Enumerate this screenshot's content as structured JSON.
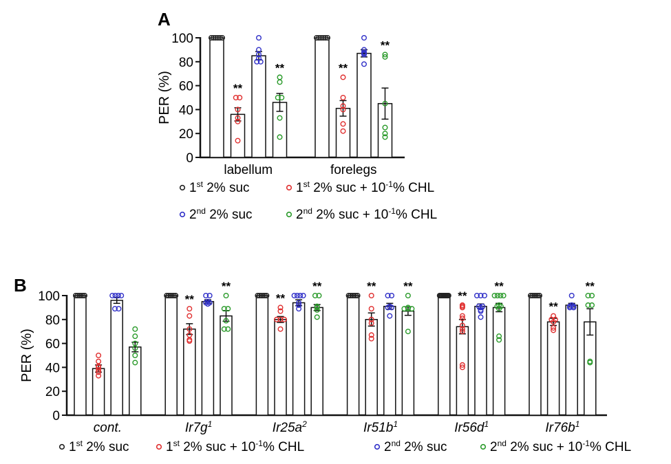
{
  "chart_data": [
    {
      "type": "bar",
      "panel": "A",
      "ylabel": "PER (%)",
      "ylim": [
        0,
        100
      ],
      "yticks": [
        0,
        20,
        40,
        60,
        80,
        100
      ],
      "categories": [
        "labellum",
        "forelegs"
      ],
      "italic_categories": false,
      "series": [
        {
          "name": "1st 2% suc",
          "color": "#222222",
          "values": [
            100,
            100
          ],
          "sem": [
            0,
            0
          ],
          "points": [
            [
              100,
              100,
              100,
              100,
              100,
              100
            ],
            [
              100,
              100,
              100,
              100,
              100,
              100
            ]
          ],
          "sig": [
            "",
            ""
          ]
        },
        {
          "name": "1st 2% suc + 10-1% CHL",
          "color": "#e03030",
          "values": [
            36,
            41
          ],
          "sem": [
            5.5,
            6.5
          ],
          "points": [
            [
              50,
              50,
              40,
              33,
              30,
              14
            ],
            [
              67,
              50,
              43,
              40,
              28,
              22
            ]
          ],
          "sig": [
            "**",
            "**"
          ]
        },
        {
          "name": "2nd 2% suc",
          "color": "#3030c8",
          "values": [
            85,
            87
          ],
          "sem": [
            3.5,
            3
          ],
          "points": [
            [
              100,
              90,
              86,
              83,
              80,
              80
            ],
            [
              100,
              90,
              88,
              87,
              86,
              78
            ]
          ],
          "sig": [
            "",
            ""
          ]
        },
        {
          "name": "2nd 2% suc + 10-1% CHL",
          "color": "#2a9a2a",
          "values": [
            46,
            45
          ],
          "sem": [
            7.5,
            13
          ],
          "points": [
            [
              67,
              63,
              50,
              50,
              33,
              17
            ],
            [
              86,
              84,
              45,
              25,
              20,
              17
            ]
          ],
          "sig": [
            "**",
            "**"
          ]
        }
      ]
    },
    {
      "type": "bar",
      "panel": "B",
      "ylabel": "PER (%)",
      "ylim": [
        0,
        100
      ],
      "yticks": [
        0,
        20,
        40,
        60,
        80,
        100
      ],
      "categories": [
        "cont.",
        "Ir7g",
        "Ir25a",
        "Ir51b",
        "Ir56d",
        "Ir76b"
      ],
      "category_superscripts": [
        "",
        "1",
        "2",
        "1",
        "1",
        "1"
      ],
      "italic_categories": true,
      "series": [
        {
          "name": "1st 2% suc",
          "color": "#222222",
          "values": [
            100,
            100,
            100,
            100,
            100,
            100
          ],
          "sem": [
            0,
            0,
            0,
            0,
            0,
            0
          ],
          "points": [
            [
              100,
              100,
              100,
              100,
              100,
              100
            ],
            [
              100,
              100,
              100,
              100,
              100,
              100
            ],
            [
              100,
              100,
              100,
              100,
              100,
              100
            ],
            [
              100,
              100,
              100,
              100,
              100,
              100
            ],
            [
              100,
              100,
              100,
              100,
              100,
              100,
              100,
              100,
              100,
              100
            ],
            [
              100,
              100,
              100,
              100,
              100,
              100
            ]
          ],
          "sig": [
            "",
            "",
            "",
            "",
            "",
            ""
          ]
        },
        {
          "name": "1st 2% suc + 10-1% CHL",
          "color": "#e03030",
          "values": [
            39,
            72,
            80,
            80,
            74,
            78
          ],
          "sem": [
            3,
            4.5,
            2.5,
            5.5,
            6,
            3
          ],
          "points": [
            [
              50,
              45,
              41,
              40,
              38,
              36,
              33
            ],
            [
              89,
              83,
              72,
              67,
              63,
              62
            ],
            [
              90,
              87,
              80,
              80,
              80,
              72
            ],
            [
              100,
              89,
              80,
              77,
              67,
              64
            ],
            [
              92,
              91,
              90,
              83,
              81,
              75,
              72,
              70,
              40,
              42
            ],
            [
              83,
              80,
              78,
              80,
              73,
              71
            ]
          ],
          "sig": [
            "",
            "**",
            "**",
            "**",
            "**",
            "**"
          ]
        },
        {
          "name": "2nd 2% suc",
          "color": "#3030c8",
          "values": [
            96,
            95,
            94,
            91,
            91,
            92
          ],
          "sem": [
            2.5,
            1.5,
            2.5,
            2.5,
            2,
            1.5
          ],
          "points": [
            [
              100,
              100,
              100,
              100,
              89,
              89
            ],
            [
              100,
              100,
              95,
              94,
              94,
              93
            ],
            [
              100,
              100,
              100,
              100,
              94,
              92,
              89
            ],
            [
              100,
              100,
              91,
              90,
              90,
              83
            ],
            [
              100,
              100,
              100,
              91,
              91,
              90,
              88,
              87,
              82
            ],
            [
              100,
              92,
              91,
              91,
              90,
              90
            ]
          ],
          "sig": [
            "",
            "",
            "",
            "",
            "",
            ""
          ]
        },
        {
          "name": "2nd 2% suc + 10-1% CHL",
          "color": "#2a9a2a",
          "values": [
            57,
            83,
            90,
            87,
            90,
            78
          ],
          "sem": [
            4,
            4.5,
            2.5,
            3.5,
            3.5,
            11
          ],
          "points": [
            [
              72,
              66,
              60,
              56,
              50,
              44
            ],
            [
              100,
              89,
              89,
              79,
              72,
              72
            ],
            [
              100,
              100,
              91,
              90,
              88,
              82
            ],
            [
              100,
              90,
              89,
              89,
              89,
              70
            ],
            [
              100,
              100,
              100,
              100,
              92,
              91,
              91,
              89,
              66,
              63
            ],
            [
              100,
              100,
              92,
              92,
              44,
              45
            ]
          ],
          "sig": [
            "",
            "**",
            "**",
            "**",
            "**",
            "**"
          ]
        }
      ]
    }
  ],
  "panelA": {
    "label": "A",
    "legend": [
      {
        "main": "1",
        "sup": "st",
        "text": " 2% suc",
        "color": "#222222"
      },
      {
        "main": "1",
        "sup": "st",
        "text": " 2% suc + 10",
        "sup2": "-1",
        "text2": "% CHL",
        "color": "#e03030"
      },
      {
        "main": "2",
        "sup": "nd",
        "text": " 2% suc",
        "color": "#3030c8"
      },
      {
        "main": "2",
        "sup": "nd",
        "text": " 2% suc + 10",
        "sup2": "-1",
        "text2": "% CHL",
        "color": "#2a9a2a"
      }
    ]
  },
  "panelB": {
    "label": "B"
  }
}
